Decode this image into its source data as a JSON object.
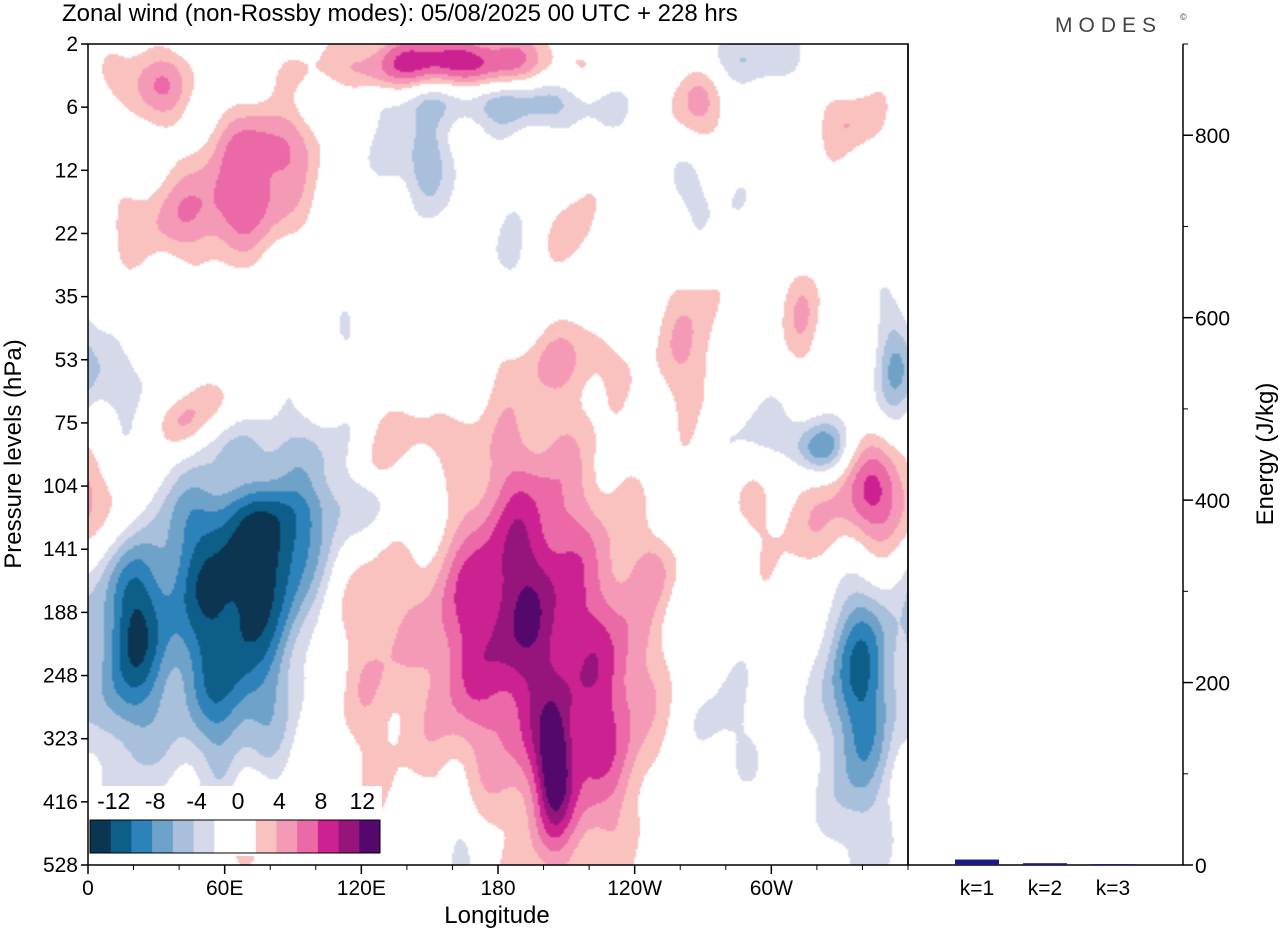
{
  "chart_data": [
    {
      "type": "heatmap",
      "title": "Zonal wind (non-Rossby modes):  05/08/2025  00 UTC  + 228 hrs",
      "brand": "MODES",
      "brand_mark": "©",
      "xlabel": "Longitude",
      "ylabel": "Pressure levels (hPa)",
      "x_ticks": [
        {
          "lon": 0,
          "label": "0"
        },
        {
          "lon": 60,
          "label": "60E"
        },
        {
          "lon": 120,
          "label": "120E"
        },
        {
          "lon": 180,
          "label": "180"
        },
        {
          "lon": 240,
          "label": "120W"
        },
        {
          "lon": 300,
          "label": "60W"
        }
      ],
      "x_minor_step": 20,
      "xlim": [
        0,
        360
      ],
      "y_levels": [
        "2",
        "6",
        "12",
        "22",
        "35",
        "53",
        "75",
        "104",
        "141",
        "188",
        "248",
        "323",
        "416",
        "528"
      ],
      "colorbar": {
        "labels": [
          "-12",
          "-8",
          "-4",
          "0",
          "4",
          "8",
          "12"
        ],
        "colors": [
          "#0b3550",
          "#0d5f8a",
          "#2d82ba",
          "#6fa2c9",
          "#a8c0dc",
          "#d6d9ea",
          "#ffffff",
          "#ffffff",
          "#f9c2bf",
          "#f59ab6",
          "#ea69a6",
          "#cc2191",
          "#96157d",
          "#55086c"
        ]
      },
      "blobs": [
        {
          "lon": 18,
          "lev": 9.3,
          "dx": 10,
          "dy": 1.4,
          "v": -11
        },
        {
          "lon": 58,
          "lev": 8.5,
          "dx": 20,
          "dy": 1.6,
          "v": -12
        },
        {
          "lon": 83,
          "lev": 7.9,
          "dx": 11,
          "dy": 1.1,
          "v": -7
        },
        {
          "lon": 100,
          "lev": 7.3,
          "dx": 12,
          "dy": 0.8,
          "v": -4
        },
        {
          "lon": 65,
          "lev": 10.6,
          "dx": 16,
          "dy": 1.0,
          "v": -4
        },
        {
          "lon": 115,
          "lev": 6.9,
          "dx": 10,
          "dy": 0.6,
          "v": -3
        },
        {
          "lon": 185,
          "lev": 8.9,
          "dx": 17,
          "dy": 1.8,
          "v": 10
        },
        {
          "lon": 210,
          "lev": 9.3,
          "dx": 16,
          "dy": 2.4,
          "v": 5
        },
        {
          "lon": 228,
          "lev": 10.8,
          "dx": 12,
          "dy": 1.5,
          "v": 4
        },
        {
          "lon": 128,
          "lev": 9.5,
          "dx": 14,
          "dy": 1.8,
          "v": 4
        },
        {
          "lon": 160,
          "lev": 9.6,
          "dx": 10,
          "dy": 1.5,
          "v": 4
        },
        {
          "lon": 238,
          "lev": 9.8,
          "dx": 14,
          "dy": 1.6,
          "v": 3
        },
        {
          "lon": 340,
          "lev": 9.8,
          "dx": 12,
          "dy": 1.0,
          "v": -8
        },
        {
          "lon": 338,
          "lev": 11.5,
          "dx": 10,
          "dy": 1.3,
          "v": -5
        },
        {
          "lon": 280,
          "lev": 10.9,
          "dx": 10,
          "dy": 0.8,
          "v": -3
        },
        {
          "lon": 318,
          "lev": 7.5,
          "dx": 28,
          "dy": 0.7,
          "v": 3
        },
        {
          "lon": 348,
          "lev": 7.1,
          "dx": 12,
          "dy": 0.6,
          "v": 7
        },
        {
          "lon": 300,
          "lev": 6.2,
          "dx": 20,
          "dy": 0.4,
          "v": -3
        },
        {
          "lon": 322,
          "lev": 6.4,
          "dx": 8,
          "dy": 0.3,
          "v": -7
        },
        {
          "lon": 265,
          "lev": 4.8,
          "dx": 10,
          "dy": 1.0,
          "v": 4
        },
        {
          "lon": 145,
          "lev": 6.2,
          "dx": 14,
          "dy": 0.3,
          "v": 3
        },
        {
          "lon": 125,
          "lev": 6.7,
          "dx": 8,
          "dy": 0.3,
          "v": 3
        },
        {
          "lon": 60,
          "lev": 5.7,
          "dx": 12,
          "dy": 0.4,
          "v": 4
        },
        {
          "lon": 40,
          "lev": 6.0,
          "dx": 8,
          "dy": 0.4,
          "v": 6
        },
        {
          "lon": 75,
          "lev": 6.9,
          "dx": 25,
          "dy": 0.3,
          "v": 3
        },
        {
          "lon": 15,
          "lev": 5.3,
          "dx": 14,
          "dy": 0.4,
          "v": -3
        },
        {
          "lon": 70,
          "lev": 2.3,
          "dx": 18,
          "dy": 0.6,
          "v": 6
        },
        {
          "lon": 40,
          "lev": 2.8,
          "dx": 25,
          "dy": 0.5,
          "v": 4
        },
        {
          "lon": 80,
          "lev": 1.5,
          "dx": 15,
          "dy": 0.4,
          "v": 5
        },
        {
          "lon": 135,
          "lev": 1.8,
          "dx": 18,
          "dy": 0.4,
          "v": -2
        },
        {
          "lon": 148,
          "lev": 1.9,
          "dx": 6,
          "dy": 0.6,
          "v": -5
        },
        {
          "lon": 165,
          "lev": 0.8,
          "dx": 35,
          "dy": 0.3,
          "v": -4
        },
        {
          "lon": 160,
          "lev": 0.2,
          "dx": 30,
          "dy": 0.3,
          "v": 8
        },
        {
          "lon": 150,
          "lev": 0.5,
          "dx": 40,
          "dy": 0.25,
          "v": 4
        },
        {
          "lon": 28,
          "lev": 0.6,
          "dx": 12,
          "dy": 0.4,
          "v": 6
        },
        {
          "lon": 268,
          "lev": 1.0,
          "dx": 10,
          "dy": 0.5,
          "v": 5
        },
        {
          "lon": 270,
          "lev": 2.3,
          "dx": 12,
          "dy": 0.7,
          "v": -3
        },
        {
          "lon": 212,
          "lev": 3.0,
          "dx": 8,
          "dy": 0.6,
          "v": 3
        },
        {
          "lon": 290,
          "lev": 0.2,
          "dx": 20,
          "dy": 0.3,
          "v": -4
        },
        {
          "lon": 335,
          "lev": 1.2,
          "dx": 10,
          "dy": 0.4,
          "v": 4
        },
        {
          "lon": 200,
          "lev": 1.0,
          "dx": 25,
          "dy": 0.3,
          "v": -3
        },
        {
          "lon": 185,
          "lev": 3.5,
          "dx": 12,
          "dy": 0.8,
          "v": -2
        },
        {
          "lon": 120,
          "lev": 4.8,
          "dx": 12,
          "dy": 0.5,
          "v": -2
        },
        {
          "lon": 210,
          "lev": 5.0,
          "dx": 20,
          "dy": 0.4,
          "v": 3
        },
        {
          "lon": 315,
          "lev": 4.3,
          "dx": 6,
          "dy": 0.6,
          "v": 4
        },
        {
          "lon": 355,
          "lev": 5.0,
          "dx": 6,
          "dy": 0.8,
          "v": -5
        },
        {
          "lon": 162,
          "lev": 12.8,
          "dx": 5,
          "dy": 0.8,
          "v": -3
        },
        {
          "lon": 68,
          "lev": 12.3,
          "dx": 6,
          "dy": 0.9,
          "v": 4
        },
        {
          "lon": 250,
          "lev": 8.3,
          "dx": 6,
          "dy": 0.4,
          "v": 3
        },
        {
          "lon": 140,
          "lev": 7.3,
          "dx": 18,
          "dy": 0.5,
          "v": -3
        },
        {
          "lon": 18,
          "lev": 7.5,
          "dx": 8,
          "dy": 0.6,
          "v": 5
        },
        {
          "lon": 205,
          "lev": 11.8,
          "dx": 10,
          "dy": 1.0,
          "v": 4
        },
        {
          "lon": 205,
          "lev": 11.5,
          "dx": 5,
          "dy": 0.6,
          "v": 6
        }
      ]
    },
    {
      "type": "bar",
      "categories": [
        "k=1",
        "k=2",
        "k=3"
      ],
      "values": [
        6,
        2,
        1
      ],
      "ylabel": "Energy (J/kg)",
      "ylim": [
        0,
        900
      ],
      "y_major_ticks": [
        0,
        200,
        400,
        600,
        800
      ],
      "y_minor_step": 100,
      "bar_color": "#1a1a8a"
    }
  ]
}
